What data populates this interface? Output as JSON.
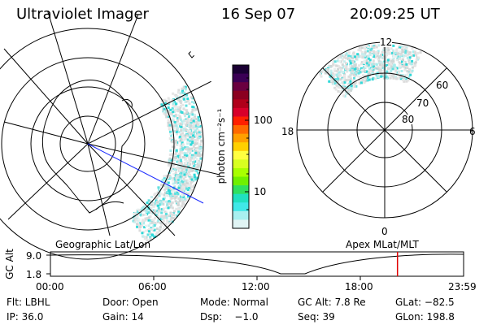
{
  "header": {
    "title": "Ultraviolet Imager",
    "date": "16 Sep 07",
    "time": "20:09:25 UT"
  },
  "colorbar": {
    "label": "photon cm⁻²s⁻¹",
    "ticks": [
      "100",
      "10"
    ],
    "colors": [
      "#1a0033",
      "#3b0055",
      "#6a0040",
      "#8b0020",
      "#b0001a",
      "#d8002a",
      "#ff2000",
      "#ff6a00",
      "#ffa000",
      "#ffd000",
      "#ffff40",
      "#d8ff20",
      "#a8ff00",
      "#70f000",
      "#30e060",
      "#20e0c0",
      "#40e8e8",
      "#a8f0f0",
      "#e0f4f4"
    ]
  },
  "geo_panel": {
    "label": "Geographic Lat/Lon"
  },
  "mag_panel": {
    "label": "Apex MLat/MLT",
    "mlt_labels": {
      "top": "12",
      "left": "18",
      "right": "6",
      "bottom": "0"
    },
    "lat_labels": [
      "60",
      "70",
      "80"
    ]
  },
  "altitude_plot": {
    "axis_label": "GC Alt",
    "y_ticks": [
      "9.0",
      "1.8"
    ],
    "x_ticks": [
      "00:00",
      "06:00",
      "12:00",
      "18:00",
      "23:59"
    ],
    "marker_time_fraction": 0.8399,
    "marker_color": "#e00000"
  },
  "info": {
    "flt": "Flt: LBHL",
    "door": "Door: Open",
    "mode": "Mode: Normal",
    "gc_alt": "GC Alt: 7.8 Re",
    "glat": "GLat: −82.5",
    "ip": "IP: 36.0",
    "gain": "Gain: 14",
    "dsp": "Dsp:    −1.0",
    "seq": "Seq: 39",
    "glon": "GLon: 198.8"
  }
}
